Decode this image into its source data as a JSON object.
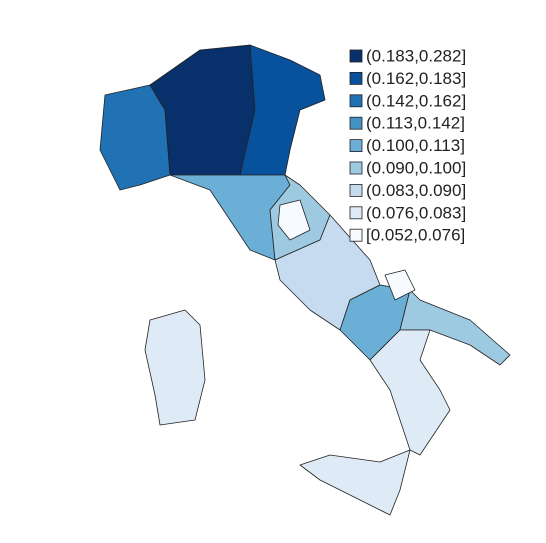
{
  "legend": [
    {
      "label": "(0.183,0.282]",
      "color": "#08306b"
    },
    {
      "label": "(0.162,0.183]",
      "color": "#08519c"
    },
    {
      "label": "(0.142,0.162]",
      "color": "#2171b5"
    },
    {
      "label": "(0.113,0.142]",
      "color": "#4292c6"
    },
    {
      "label": "(0.100,0.113]",
      "color": "#6baed6"
    },
    {
      "label": "(0.090,0.100]",
      "color": "#9ecae1"
    },
    {
      "label": "(0.083,0.090]",
      "color": "#c6dbef"
    },
    {
      "label": "(0.076,0.083]",
      "color": "#deebf7"
    },
    {
      "label": "[0.052,0.076]",
      "color": "#f7fbff"
    }
  ]
}
